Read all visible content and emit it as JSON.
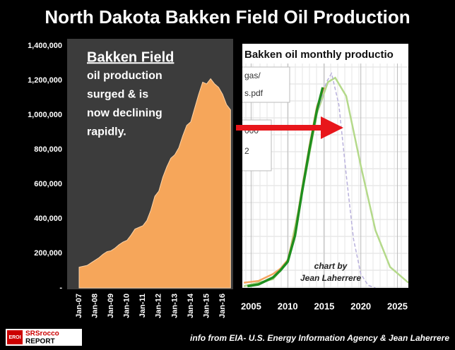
{
  "title": "North Dakota Bakken Field Oil Production",
  "logo": {
    "badge": "EROI",
    "top": "SRSrocco",
    "bottom": "REPORT"
  },
  "source": "info from EIA- U.S. Energy Information Agency & Jean Laherrere",
  "chart_data": [
    {
      "type": "area",
      "categories": [
        "Jan-07",
        null,
        null,
        null,
        "Jan-08",
        null,
        null,
        null,
        "Jan-09",
        null,
        null,
        null,
        "Jan-10",
        null,
        null,
        null,
        "Jan-11",
        null,
        null,
        null,
        "Jan-12",
        null,
        null,
        null,
        "Jan-13",
        null,
        null,
        null,
        "Jan-14",
        null,
        null,
        null,
        "Jan-15",
        null,
        null,
        null,
        "Jan-16",
        null,
        null
      ],
      "values": [
        120000,
        125000,
        130000,
        145000,
        160000,
        175000,
        195000,
        210000,
        215000,
        230000,
        250000,
        265000,
        275000,
        305000,
        340000,
        350000,
        360000,
        390000,
        450000,
        530000,
        560000,
        640000,
        700000,
        750000,
        770000,
        810000,
        880000,
        940000,
        960000,
        1040000,
        1120000,
        1190000,
        1180000,
        1210000,
        1180000,
        1160000,
        1120000,
        1060000,
        1030000
      ],
      "color": "#f6a65a",
      "ylim": [
        0,
        1400000
      ],
      "yticks": [
        {
          "value": 0,
          "label": "-"
        },
        {
          "value": 200000,
          "label": "200,000"
        },
        {
          "value": 400000,
          "label": "400,000"
        },
        {
          "value": 600000,
          "label": "600,000"
        },
        {
          "value": 800000,
          "label": "800,000"
        },
        {
          "value": 1000000,
          "label": "1,000,000"
        },
        {
          "value": 1200000,
          "label": "1,200,000"
        },
        {
          "value": 1400000,
          "label": "1,400,000"
        }
      ],
      "annotation": {
        "heading": "Bakken Field",
        "lines": [
          "oil production",
          "surged & is",
          "now declining",
          "rapidly."
        ]
      }
    },
    {
      "type": "line",
      "title": "Bakken oil monthly productio",
      "fragments": [
        "gas/",
        "s.pdf",
        "000",
        "2"
      ],
      "annotation": [
        "chart by",
        "Jean Laherrere"
      ],
      "xlim": [
        2003.8,
        2026.5
      ],
      "xticks": [
        2005,
        2010,
        2015,
        2020,
        2025
      ],
      "ylim": [
        0,
        1400000
      ],
      "grid": true,
      "series": [
        {
          "color": "#b4d98a",
          "dashed": false,
          "x": [
            2004,
            2008,
            2010,
            2012,
            2014,
            2015.5,
            2016.5,
            2018,
            2020,
            2022,
            2024,
            2026.5
          ],
          "values": [
            10000,
            50000,
            150000,
            550000,
            1000000,
            1180000,
            1205000,
            1100000,
            700000,
            330000,
            120000,
            30000
          ]
        },
        {
          "color": "#b8b0dc",
          "dashed": true,
          "x": [
            2014,
            2015.3,
            2016,
            2017,
            2018,
            2019,
            2020,
            2021,
            2022
          ],
          "values": [
            1000000,
            1180000,
            1230000,
            1050000,
            650000,
            280000,
            80000,
            15000,
            0
          ]
        },
        {
          "color": "#f4a460",
          "dashed": false,
          "x": [
            2004,
            2006,
            2008,
            2009,
            2010,
            2011,
            2012,
            2013,
            2014,
            2015
          ],
          "values": [
            30000,
            40000,
            80000,
            110000,
            160000,
            320000,
            580000,
            820000,
            1040000,
            1150000
          ]
        },
        {
          "color": "#1f8f1f",
          "dashed": false,
          "x": [
            2004.5,
            2006,
            2008,
            2009,
            2010,
            2011,
            2012,
            2013,
            2014,
            2014.8
          ],
          "values": [
            10000,
            20000,
            60000,
            100000,
            150000,
            300000,
            560000,
            800000,
            1020000,
            1150000
          ]
        }
      ]
    }
  ]
}
